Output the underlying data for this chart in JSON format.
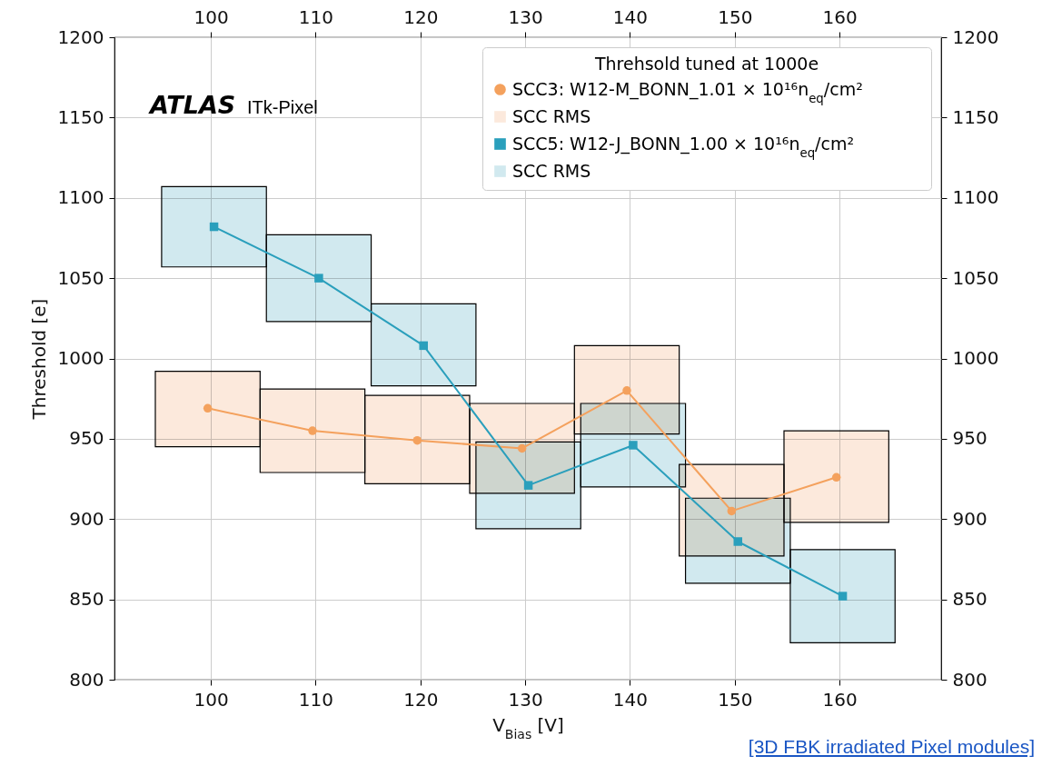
{
  "chart_data": {
    "type": "line",
    "xlabel": "V$_{Bias}$ [V]",
    "ylabel": "Threshold [e]",
    "legend_title": "Threhsold tuned at 1000e",
    "legend": "top right",
    "grid": true,
    "xlim": [
      90.8,
      169.7
    ],
    "xticks": [
      100,
      110,
      120,
      130,
      140,
      150,
      160
    ],
    "ylim": [
      800,
      1200
    ],
    "yticks": [
      800,
      850,
      900,
      950,
      1000,
      1050,
      1100,
      1150,
      1200
    ],
    "x2lim": [
      90.8,
      169.7
    ],
    "x2ticks": [
      100,
      110,
      120,
      130,
      140,
      150,
      160
    ],
    "y2lim": [
      800,
      1200
    ],
    "y2ticks": [
      800,
      850,
      900,
      950,
      1000,
      1050,
      1100,
      1150,
      1200
    ],
    "annotations": [
      "ATLAS",
      "ITk-Pixel",
      "[3D FBK irradiated Pixel modules]"
    ],
    "series": [
      {
        "name": "SCC3: W12-M_BONN_1.01 × 10¹⁶n$_{eq}$/cm²",
        "color": "#f4a15d",
        "marker": "circle",
        "x": [
          99.7,
          109.7,
          119.7,
          129.7,
          139.7,
          149.7,
          159.7
        ],
        "values": [
          969,
          955,
          949,
          944,
          980,
          905,
          926
        ]
      },
      {
        "name": "SCC RMS",
        "type": "bar",
        "color": "#fce9dc",
        "x": [
          99.7,
          109.7,
          119.7,
          129.7,
          139.7,
          149.7,
          159.7
        ],
        "base": [
          945,
          929,
          922,
          916,
          953,
          877,
          898
        ],
        "values": [
          47,
          52,
          55,
          56,
          55,
          57,
          57
        ]
      },
      {
        "name": "SCC5: W12-J_BONN_1.00 × 10¹⁶n$_{eq}$/cm²",
        "color": "#2a9fbc",
        "marker": "square",
        "x": [
          100.3,
          110.3,
          120.3,
          130.3,
          140.3,
          150.3,
          160.3
        ],
        "values": [
          1082,
          1050,
          1008,
          921,
          946,
          886,
          852
        ]
      },
      {
        "name": "SCC RMS",
        "type": "bar",
        "color": "#d1e9ef",
        "x": [
          100.3,
          110.3,
          120.3,
          130.3,
          140.3,
          150.3,
          160.3
        ],
        "base": [
          1057,
          1023,
          983,
          894,
          920,
          860,
          823
        ],
        "values": [
          50,
          54,
          51,
          54,
          52,
          53,
          58
        ]
      }
    ]
  }
}
